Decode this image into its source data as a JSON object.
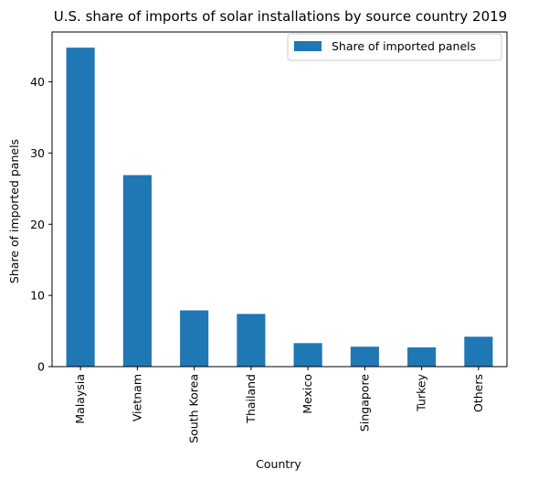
{
  "chart_data": {
    "type": "bar",
    "title": "U.S. share of imports of solar installations by source country 2019",
    "xlabel": "Country",
    "ylabel": "Share of imported panels",
    "categories": [
      "Malaysia",
      "Vietnam",
      "South Korea",
      "Thailand",
      "Mexico",
      "Singapore",
      "Turkey",
      "Others"
    ],
    "series": [
      {
        "name": "Share of imported panels",
        "values": [
          44.8,
          26.9,
          7.9,
          7.4,
          3.3,
          2.8,
          2.7,
          4.2
        ],
        "color": "#1f77b4"
      }
    ],
    "ylim": [
      0,
      47.0
    ],
    "yticks": [
      "0",
      "10",
      "20",
      "30",
      "40"
    ],
    "grid": false,
    "legend_position": "top-right"
  }
}
